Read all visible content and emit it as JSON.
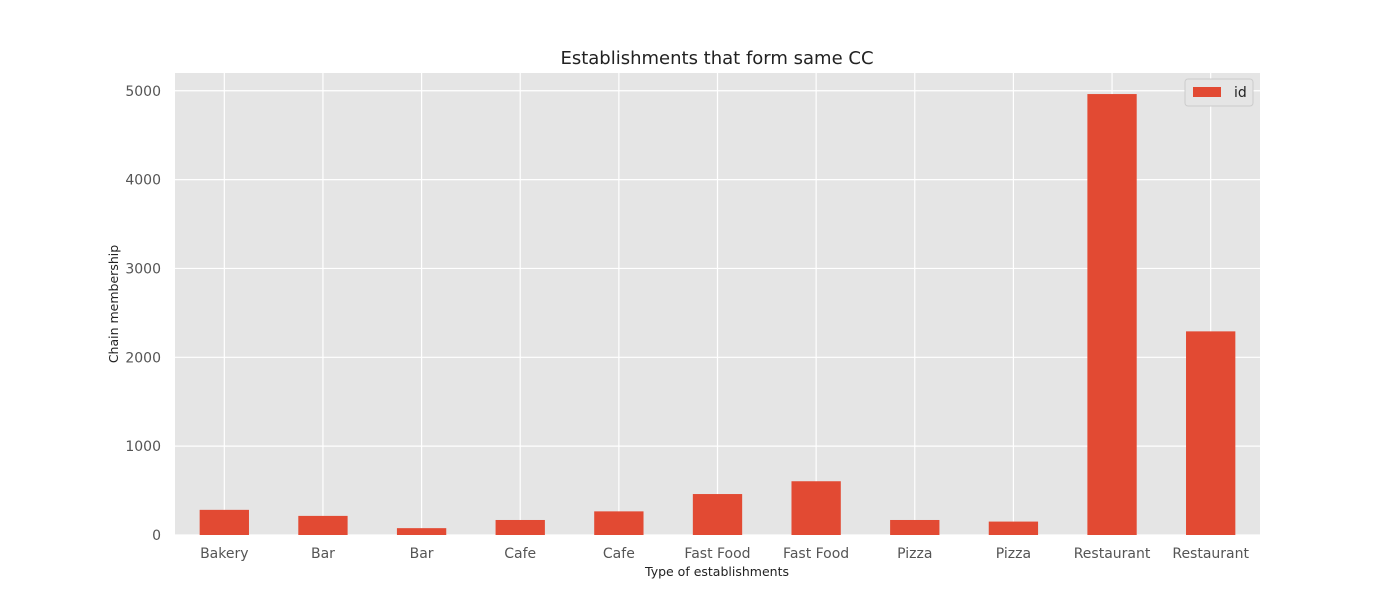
{
  "chart_data": {
    "type": "bar",
    "title": "Establishments that form same CC",
    "xlabel": "Type of establishments",
    "ylabel": "Chain membership",
    "categories": [
      "Bakery",
      "Bar",
      "Bar",
      "Cafe",
      "Cafe",
      "Fast Food",
      "Fast Food",
      "Pizza",
      "Pizza",
      "Restaurant",
      "Restaurant"
    ],
    "series": [
      {
        "name": "id",
        "values": [
          283,
          215,
          77,
          169,
          266,
          461,
          605,
          169,
          151,
          4963,
          2292
        ],
        "color": "#E24A33"
      }
    ],
    "ylim": [
      0,
      5200
    ],
    "yticks": [
      0,
      1000,
      2000,
      3000,
      4000,
      5000
    ],
    "grid": true,
    "legend": "top-right",
    "background": "#E5E5E5",
    "grid_color": "#FFFFFF"
  }
}
